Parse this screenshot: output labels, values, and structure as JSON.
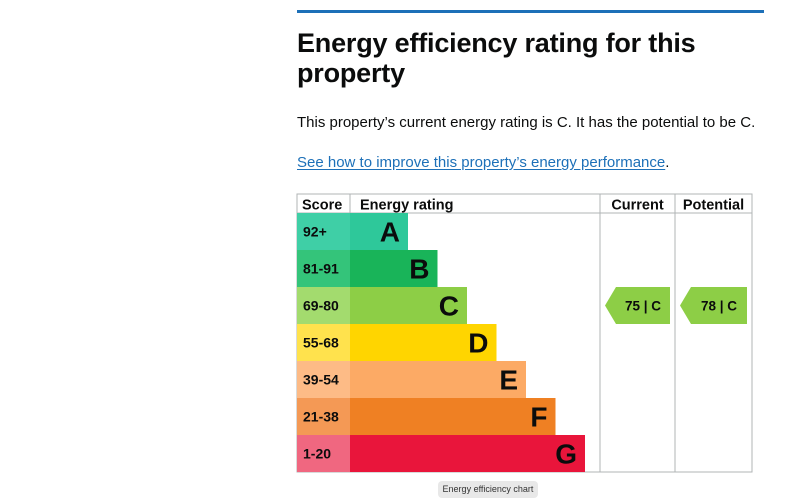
{
  "page": {
    "heading": "Energy efficiency rating for this property",
    "summary": "This property’s current energy rating is C. It has the potential to be C.",
    "improve_link": "See how to improve this property’s energy performance",
    "improve_suffix": ".",
    "link_color": "#1d70b8"
  },
  "chart_data": {
    "type": "bar",
    "headers": {
      "score": "Score",
      "rating": "Energy rating",
      "current": "Current",
      "potential": "Potential"
    },
    "bands": [
      {
        "band": "A",
        "score_range": "92+",
        "color": "#2ec89a",
        "score_color": "#3fcfa6"
      },
      {
        "band": "B",
        "score_range": "81-91",
        "color": "#19b459",
        "score_color": "#34c47a"
      },
      {
        "band": "C",
        "score_range": "69-80",
        "color": "#8dce46",
        "score_color": "#a3db6e"
      },
      {
        "band": "D",
        "score_range": "55-68",
        "color": "#ffd500",
        "score_color": "#ffe24d"
      },
      {
        "band": "E",
        "score_range": "39-54",
        "color": "#fcaa65",
        "score_color": "#fdbb86"
      },
      {
        "band": "F",
        "score_range": "21-38",
        "color": "#ef8023",
        "score_color": "#f49955"
      },
      {
        "band": "G",
        "score_range": "1-20",
        "color": "#e9153b",
        "score_color": "#f06780"
      }
    ],
    "current": {
      "score": 75,
      "band": "C",
      "label": "75 | C"
    },
    "potential": {
      "score": 78,
      "band": "C",
      "label": "78 | C"
    },
    "caption": "Energy efficiency chart"
  }
}
